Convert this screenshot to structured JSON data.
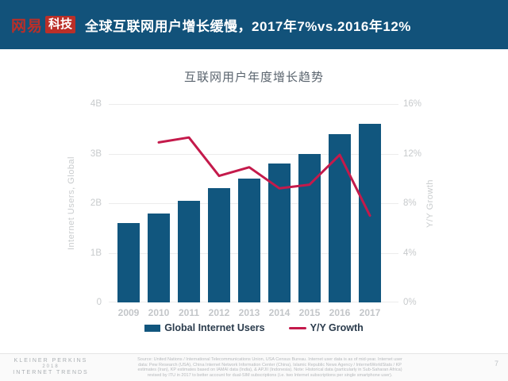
{
  "header": {
    "logo_netease": "网易",
    "logo_tech": "科技",
    "title": "全球互联网用户增长缓慢，2017年7%vs.2016年12%"
  },
  "chart": {
    "title": "互联网用户年度增长趋势",
    "left_axis_label": "Internet Users, Global",
    "right_axis_label": "Y/Y Growth",
    "left_ticks": [
      "4B",
      "3B",
      "2B",
      "1B",
      "0"
    ],
    "right_ticks": [
      "16%",
      "12%",
      "8%",
      "4%",
      "0%"
    ],
    "legend_bar_label": "Global Internet Users",
    "legend_line_label": "Y/Y Growth"
  },
  "chart_data": {
    "type": "bar",
    "title": "互联网用户年度增长趋势",
    "categories": [
      2009,
      2010,
      2011,
      2012,
      2013,
      2014,
      2015,
      2016,
      2017
    ],
    "series": [
      {
        "name": "Global Internet Users",
        "type": "bar",
        "axis": "left",
        "unit": "billions",
        "values": [
          1.6,
          1.8,
          2.05,
          2.3,
          2.5,
          2.8,
          3.0,
          3.4,
          3.6
        ]
      },
      {
        "name": "Y/Y Growth",
        "type": "line",
        "axis": "right",
        "unit": "%",
        "x": [
          2010,
          2011,
          2012,
          2013,
          2014,
          2015,
          2016,
          2017
        ],
        "values": [
          12.9,
          13.3,
          10.2,
          10.9,
          9.2,
          9.5,
          11.9,
          7.0
        ]
      }
    ],
    "left_ylabel": "Internet Users, Global",
    "right_ylabel": "Y/Y Growth",
    "left_ylim": [
      0,
      4
    ],
    "right_ylim": [
      0,
      16
    ],
    "grid": true,
    "legend_position": "bottom"
  },
  "footer": {
    "brand_lines": [
      "KLEINER PERKINS",
      "2018",
      "INTERNET TRENDS"
    ],
    "source_lines": [
      "Source: United Nations / International Telecommunications Union, USA Census Bureau. Internet user data is as of mid-year. Internet user",
      "data: Pew Research (USA), China Internet Network Information Center (China), Islamic Republic News Agency / InternetWorldStats / KP",
      "estimates (Iran), KP estimates based on IAMAI data (India), & APJII (Indonesia). Note: Historical data (particularly in Sub-Saharan Africa)",
      "revised by ITU in 2017 to better account for dual-SIM subscriptions (i.e. two Internet subscriptions per single smartphone user)."
    ],
    "page_number": "7"
  },
  "colors": {
    "header_bg": "#12527a",
    "logo_red": "#bb2f28",
    "bar": "#11567e",
    "line": "#c41a4b",
    "grid": "#ececec",
    "axis_text": "#c7cacc",
    "legend_text": "#2a3b4c"
  }
}
